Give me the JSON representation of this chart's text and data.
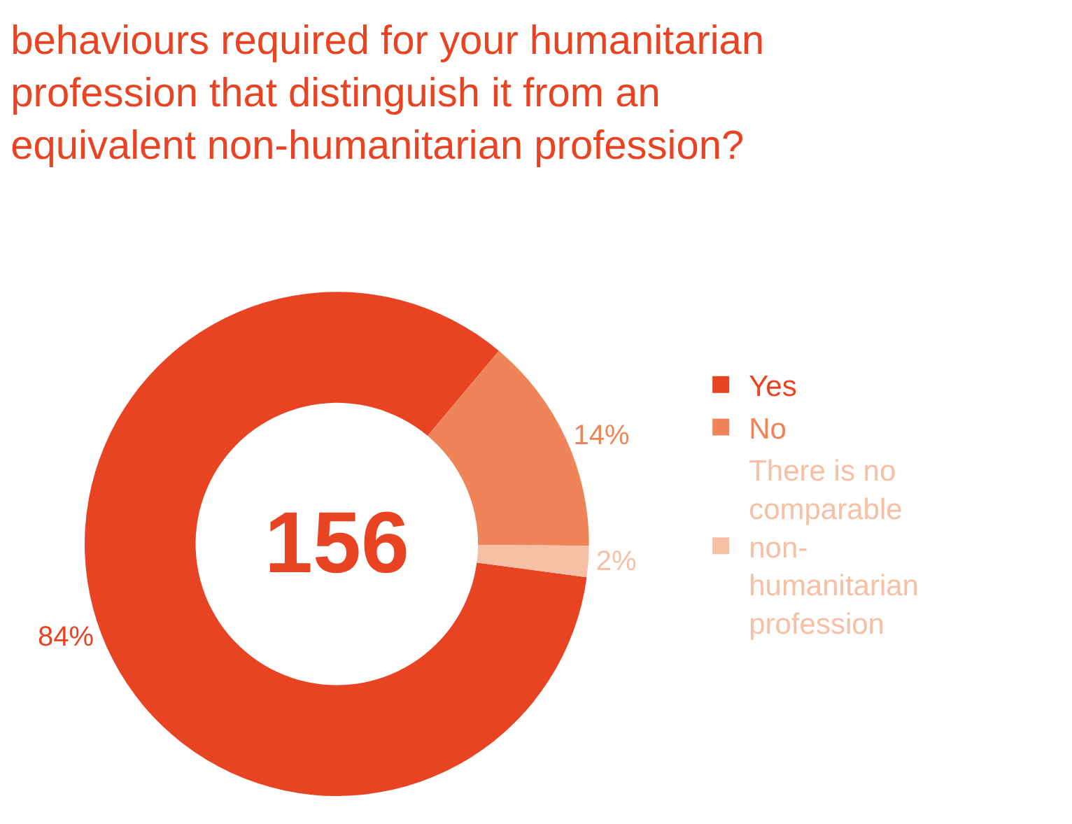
{
  "chart_data": {
    "type": "donut",
    "title": "behaviours required for your humanitarian profession that distinguish it from an equivalent non-humanitarian profession?",
    "categories": [
      "Yes",
      "No",
      "There is no comparable non-humanitarian profession"
    ],
    "values": [
      84,
      14,
      2
    ],
    "colors": [
      "#e84424",
      "#ee8458",
      "#f6c0a4"
    ],
    "value_labels": [
      "84%",
      "14%",
      "2%"
    ],
    "annotations": [
      "156"
    ],
    "legend": "right"
  }
}
